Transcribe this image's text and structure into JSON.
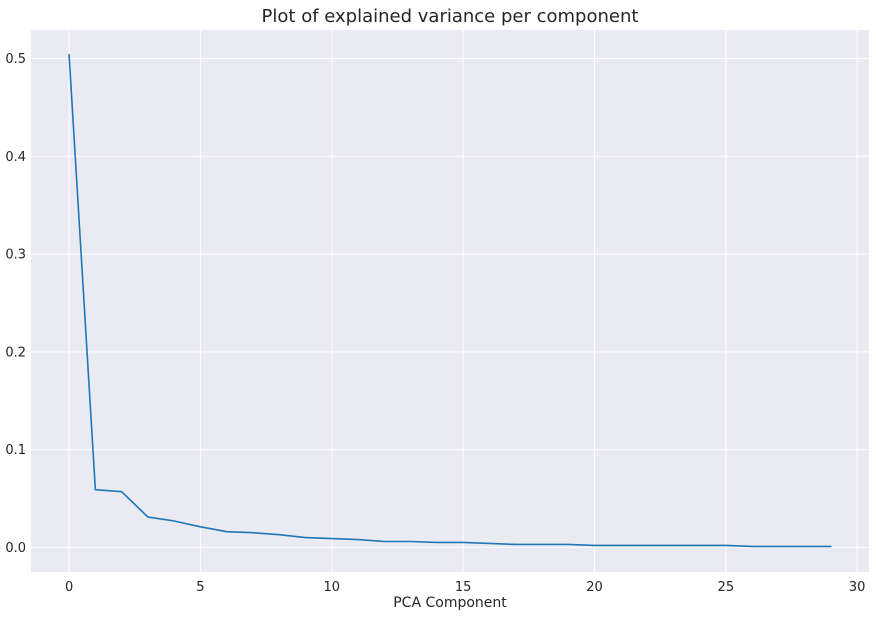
{
  "chart_data": {
    "type": "line",
    "title": "Plot of explained variance per component",
    "xlabel": "PCA Component",
    "ylabel": "",
    "xlim": [
      -1.45,
      30.45
    ],
    "ylim": [
      -0.0252,
      0.5292
    ],
    "xticks": [
      0,
      5,
      10,
      15,
      20,
      25,
      30
    ],
    "xtick_labels": [
      "0",
      "5",
      "10",
      "15",
      "20",
      "25",
      "30"
    ],
    "yticks": [
      0.0,
      0.1,
      0.2,
      0.3,
      0.4,
      0.5
    ],
    "ytick_labels": [
      "0.0",
      "0.1",
      "0.2",
      "0.3",
      "0.4",
      "0.5"
    ],
    "grid": true,
    "legend": false,
    "colors": {
      "background": "#eaeaf2",
      "grid": "#ffffff",
      "line": "#1f77b4"
    },
    "series": [
      {
        "x": [
          0,
          1,
          2,
          3,
          4,
          5,
          6,
          7,
          8,
          9,
          10,
          11,
          12,
          13,
          14,
          15,
          16,
          17,
          18,
          19,
          20,
          21,
          22,
          23,
          24,
          25,
          26,
          27,
          28,
          29
        ],
        "values": [
          0.504,
          0.059,
          0.057,
          0.031,
          0.027,
          0.021,
          0.016,
          0.015,
          0.013,
          0.01,
          0.009,
          0.008,
          0.006,
          0.006,
          0.005,
          0.005,
          0.004,
          0.003,
          0.003,
          0.003,
          0.002,
          0.002,
          0.002,
          0.002,
          0.002,
          0.002,
          0.001,
          0.001,
          0.001,
          0.001
        ]
      }
    ]
  }
}
